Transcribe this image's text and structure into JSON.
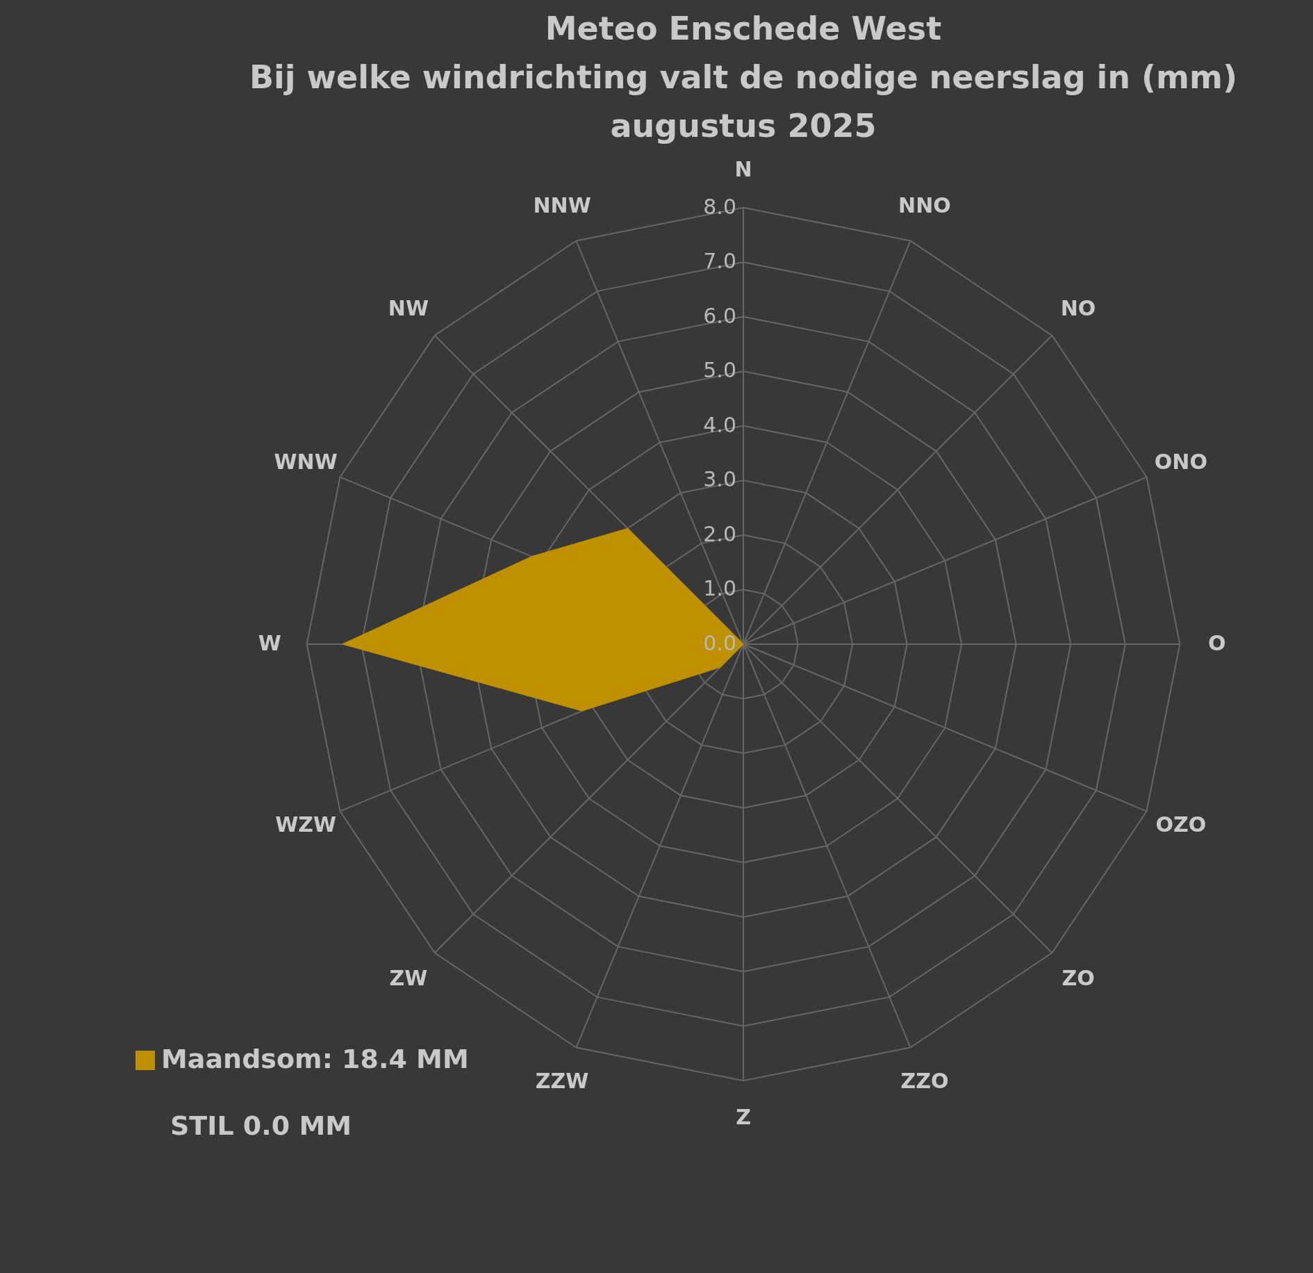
{
  "chart_data": {
    "type": "radar",
    "title": "Meteo Enschede West\nBij welke windrichting valt de nodige neerslag in (mm)\naugustus 2025",
    "categories": [
      "N",
      "NNO",
      "NO",
      "ONO",
      "O",
      "OZO",
      "ZO",
      "ZZO",
      "Z",
      "ZZW",
      "ZW",
      "WZW",
      "W",
      "WNW",
      "NW",
      "NNW"
    ],
    "series": [
      {
        "name": "Maandsom: 18.4 MM",
        "color": "#bf9000",
        "values": [
          0,
          0,
          0,
          0,
          0,
          0,
          0,
          0,
          0,
          0,
          0.6,
          3.2,
          7.35,
          4.2,
          3.0,
          0
        ]
      }
    ],
    "ylim": [
      0,
      8
    ],
    "yticks": [
      {
        "value": 0,
        "label": "0.0"
      },
      {
        "value": 1,
        "label": "1.0"
      },
      {
        "value": 2,
        "label": "2.0"
      },
      {
        "value": 3,
        "label": "3.0"
      },
      {
        "value": 4,
        "label": "4.0"
      },
      {
        "value": 5,
        "label": "5.0"
      },
      {
        "value": 6,
        "label": "6.0"
      },
      {
        "value": 7,
        "label": "7.0"
      },
      {
        "value": 8,
        "label": "8.0"
      }
    ],
    "grid": true,
    "legend": "bottom left",
    "annotations": [
      "STIL 0.0 MM"
    ]
  }
}
